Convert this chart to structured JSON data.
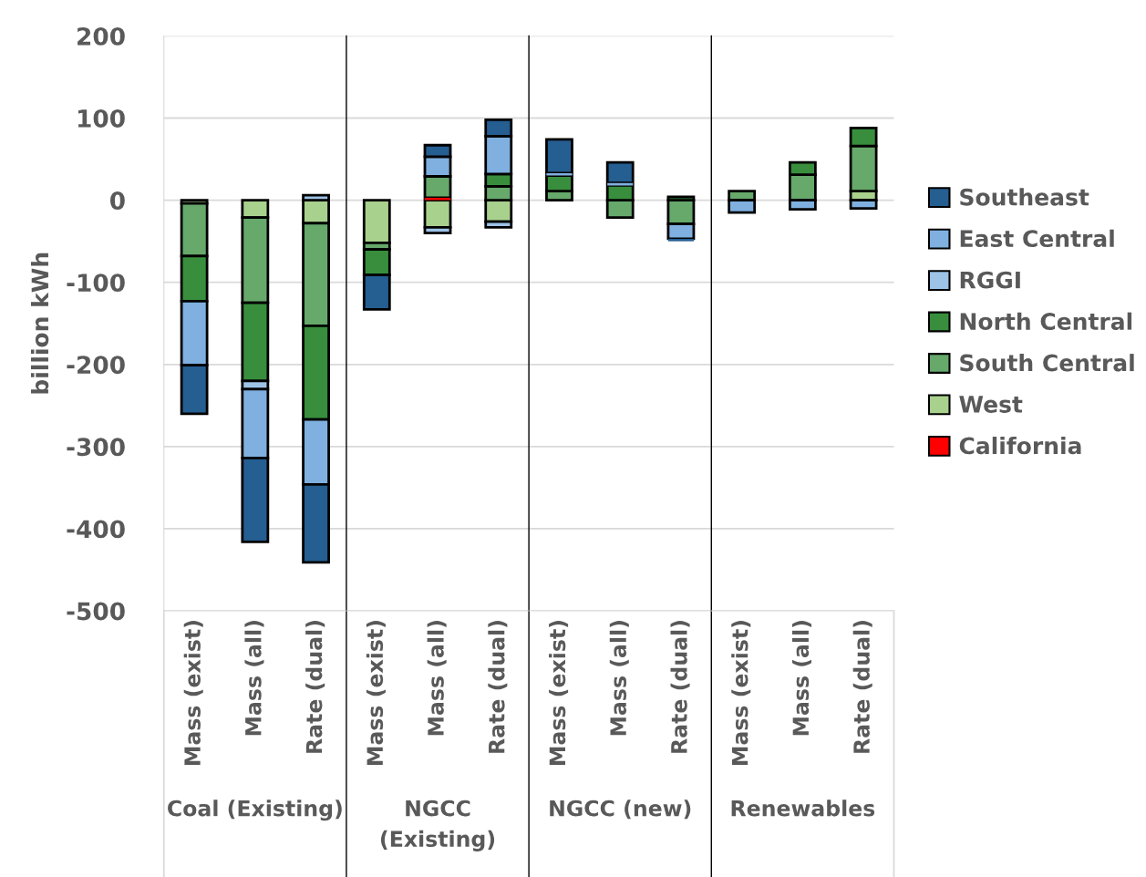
{
  "chart_data": {
    "type": "bar",
    "stacked": true,
    "ylabel": "billion kWh",
    "categories": [
      "Mass (exist)",
      "Mass (all)",
      "Rate (dual)",
      "Mass (exist)",
      "Mass (all)",
      "Rate (dual)",
      "Mass (exist)",
      "Mass (all)",
      "Rate (dual)",
      "Mass (exist)",
      "Mass (all)",
      "Rate (dual)"
    ],
    "series": [
      {
        "name": "California",
        "color": "#ff0000",
        "values": [
          0,
          0,
          0,
          0,
          3,
          0,
          0,
          0,
          0,
          0,
          0,
          0
        ]
      },
      {
        "name": "West",
        "color": "#a9d18e",
        "values": [
          -4,
          -21,
          -28,
          -52,
          -33,
          -26,
          0,
          0,
          0,
          0,
          0,
          11
        ]
      },
      {
        "name": "South Central",
        "color": "#66a96b",
        "values": [
          -64,
          -104,
          -125,
          -8,
          26,
          17,
          11,
          -21,
          -29,
          11,
          31,
          55
        ]
      },
      {
        "name": "North Central",
        "color": "#388e3c",
        "values": [
          -55,
          -95,
          -114,
          -31,
          0,
          15,
          19,
          18,
          4,
          0,
          15,
          22
        ]
      },
      {
        "name": "RGGI",
        "color": "#9dc3e6",
        "values": [
          0,
          -10,
          6,
          0,
          -7,
          -7,
          0,
          0,
          0,
          0,
          0,
          0
        ]
      },
      {
        "name": "East Central",
        "color": "#7fb0e0",
        "values": [
          -78,
          -84,
          -79,
          null,
          24,
          46,
          3,
          3,
          -18,
          -15,
          -11,
          -10
        ]
      },
      {
        "name": "Southeast",
        "color": "#255e91",
        "values": [
          -59,
          -102,
          -95,
          -42,
          14,
          20,
          41,
          25,
          -3,
          0,
          0,
          0
        ]
      }
    ],
    "ylim": [
      -500,
      200
    ],
    "yticks": [
      -500,
      -400,
      -300,
      -200,
      -100,
      0,
      100,
      200
    ],
    "grid": "y",
    "legend": "right",
    "annotations": [
      "Coal (Existing)",
      "NGCC\n(Existing)",
      "NGCC (new)",
      "Renewables"
    ]
  }
}
